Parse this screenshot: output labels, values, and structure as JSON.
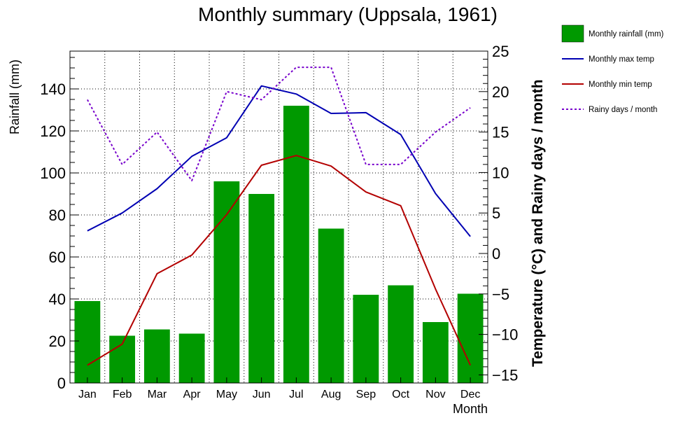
{
  "chart_data": {
    "type": "bar",
    "title": "Monthly summary (Uppsala, 1961)",
    "xlabel": "Month",
    "ylabel_left": "Rainfall (mm)",
    "ylabel_right": "Temperature (°C) and Rainy days / month",
    "categories": [
      "Jan",
      "Feb",
      "Mar",
      "Apr",
      "May",
      "Jun",
      "Jul",
      "Aug",
      "Sep",
      "Oct",
      "Nov",
      "Dec"
    ],
    "ylim_left": [
      0,
      158
    ],
    "left_ticks": [
      0,
      20,
      40,
      60,
      80,
      100,
      120,
      140
    ],
    "ylim_right": [
      -16,
      25
    ],
    "right_ticks": [
      -15,
      -10,
      -5,
      0,
      5,
      10,
      15,
      20,
      25
    ],
    "grid": true,
    "legend_position": "top-right-outside",
    "series": [
      {
        "name": "Monthly rainfall (mm)",
        "type": "bar",
        "axis": "left",
        "color": "#009900",
        "values": [
          39,
          22.5,
          25.5,
          23.5,
          96,
          90,
          132,
          73.5,
          42,
          46.5,
          29,
          42.5
        ]
      },
      {
        "name": "Monthly max temp",
        "type": "line",
        "axis": "right",
        "color": "#0000b3",
        "style": "solid",
        "values": [
          2.8,
          5.0,
          8.0,
          12.0,
          14.3,
          20.7,
          19.7,
          17.3,
          17.4,
          14.7,
          7.4,
          2.1
        ]
      },
      {
        "name": "Monthly min temp",
        "type": "line",
        "axis": "right",
        "color": "#b30000",
        "style": "solid",
        "values": [
          -13.8,
          -11.2,
          -2.5,
          -0.2,
          4.8,
          10.9,
          12.1,
          10.8,
          7.6,
          5.9,
          -4.4,
          -13.8
        ]
      },
      {
        "name": "Rainy days / month",
        "type": "line",
        "axis": "right",
        "color": "#7700cc",
        "style": "dotted",
        "values": [
          19,
          11,
          15,
          9,
          20,
          19,
          23,
          23,
          11,
          11,
          15,
          18
        ]
      }
    ]
  }
}
